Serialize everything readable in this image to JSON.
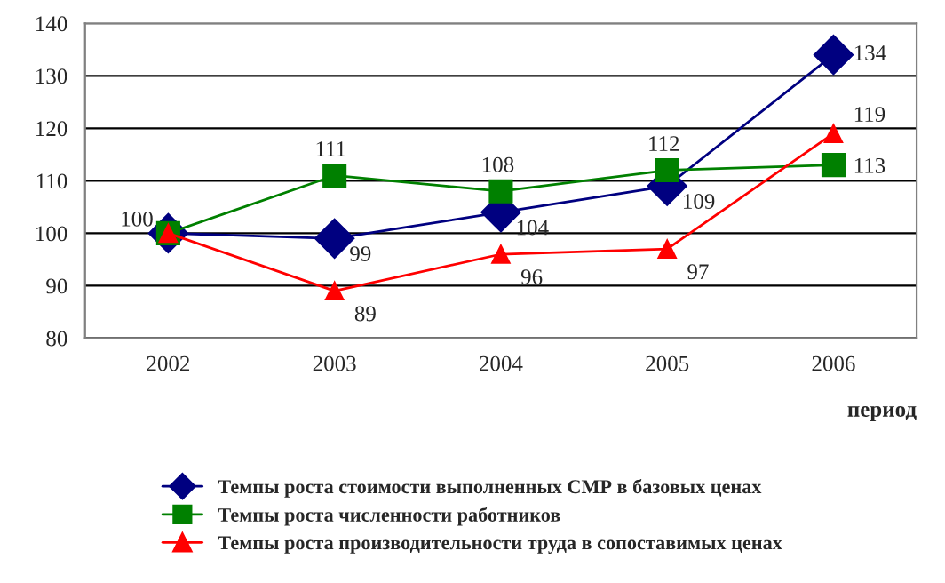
{
  "chart_data": {
    "type": "line",
    "xlabel": "период",
    "categories": [
      "2002",
      "2003",
      "2004",
      "2005",
      "2006"
    ],
    "series": [
      {
        "name": "Темпы роста стоимости выполненных СМР в базовых ценах",
        "color": "#000080",
        "marker": "diamond",
        "values": [
          100,
          99,
          104,
          109,
          134
        ],
        "value_labels": [
          "100",
          "99",
          "104",
          "109",
          "134"
        ]
      },
      {
        "name": "Темпы роста численности работников",
        "color": "#008000",
        "marker": "square",
        "values": [
          100,
          111,
          108,
          112,
          113
        ],
        "value_labels": [
          null,
          "111",
          "108",
          "112",
          "113"
        ]
      },
      {
        "name": "Темпы роста производительности труда в сопоставимых ценах",
        "color": "#ff0000",
        "marker": "triangle",
        "values": [
          100,
          89,
          96,
          97,
          119
        ],
        "value_labels": [
          null,
          "89",
          "96",
          "97",
          "119"
        ]
      }
    ],
    "ylim": [
      80,
      140
    ],
    "yticks": [
      80,
      90,
      100,
      110,
      120,
      130,
      140
    ],
    "grid": "y",
    "legend": "bottom",
    "line_style": "solid"
  }
}
